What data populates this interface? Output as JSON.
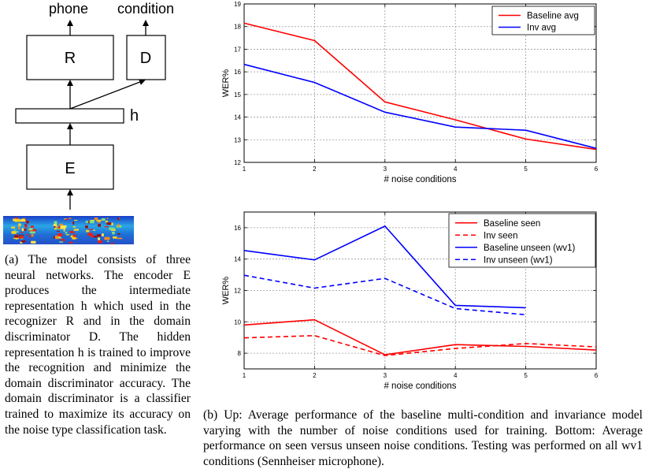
{
  "figure_a": {
    "labels": {
      "phone": "phone",
      "condition": "condition",
      "recognizer": "R",
      "discriminator": "D",
      "hidden": "h",
      "encoder": "E"
    },
    "caption": "(a) The model consists of three neural networks. The encoder E produces the intermediate representation h which used in the recognizer R and in the domain discriminator D. The hidden representation h is trained to improve the recognition and minimize the domain discriminator accuracy. The domain discriminator is a classifier trained to maximize its accuracy on the noise type classification task."
  },
  "figure_b": {
    "caption": "(b) Up: Average performance of the baseline multi-condition and invariance model varying with the number of noise conditions used for training. Bottom: Average performance on seen versus unseen noise conditions. Testing was performed on all wv1 conditions (Sennheiser microphone)."
  },
  "chart_data": [
    {
      "type": "line",
      "xlabel": "# noise conditions",
      "ylabel": "WER%",
      "xlim": [
        1,
        6
      ],
      "ylim": [
        12,
        19
      ],
      "xticks": [
        1,
        2,
        3,
        4,
        5,
        6
      ],
      "yticks": [
        12,
        13,
        14,
        15,
        16,
        17,
        18,
        19
      ],
      "grid": true,
      "legend": "top-right",
      "series": [
        {
          "name": "Baseline avg",
          "color": "#ff0000",
          "dash": false,
          "x": [
            1,
            2,
            3,
            4,
            5,
            6
          ],
          "y": [
            18.15,
            17.38,
            14.67,
            13.88,
            13.03,
            12.57
          ]
        },
        {
          "name": "Inv avg",
          "color": "#0000ff",
          "dash": false,
          "x": [
            1,
            2,
            3,
            4,
            5,
            6
          ],
          "y": [
            16.33,
            15.53,
            14.22,
            13.56,
            13.42,
            12.62
          ]
        }
      ]
    },
    {
      "type": "line",
      "xlabel": "# noise conditions",
      "ylabel": "WER%",
      "xlim": [
        1,
        6
      ],
      "ylim": [
        7,
        17
      ],
      "xticks": [
        1,
        2,
        3,
        4,
        5,
        6
      ],
      "yticks": [
        8,
        10,
        12,
        14,
        16
      ],
      "grid": true,
      "legend": "top-right",
      "series": [
        {
          "name": "Baseline seen",
          "color": "#ff0000",
          "dash": false,
          "x": [
            1,
            2,
            3,
            4,
            5,
            6
          ],
          "y": [
            9.8,
            10.13,
            7.9,
            8.55,
            8.43,
            8.2
          ]
        },
        {
          "name": "Inv seen",
          "color": "#ff0000",
          "dash": true,
          "x": [
            1,
            2,
            3,
            4,
            5,
            6
          ],
          "y": [
            8.98,
            9.12,
            7.85,
            8.3,
            8.62,
            8.4
          ]
        },
        {
          "name": "Baseline unseen (wv1)",
          "color": "#0000ff",
          "dash": false,
          "x": [
            1,
            2,
            3,
            4,
            5
          ],
          "y": [
            14.55,
            13.95,
            16.1,
            11.05,
            10.9
          ]
        },
        {
          "name": "Inv unseen (wv1)",
          "color": "#0000ff",
          "dash": true,
          "x": [
            1,
            2,
            3,
            4,
            5
          ],
          "y": [
            12.97,
            12.15,
            12.77,
            10.85,
            10.45
          ]
        }
      ]
    }
  ]
}
